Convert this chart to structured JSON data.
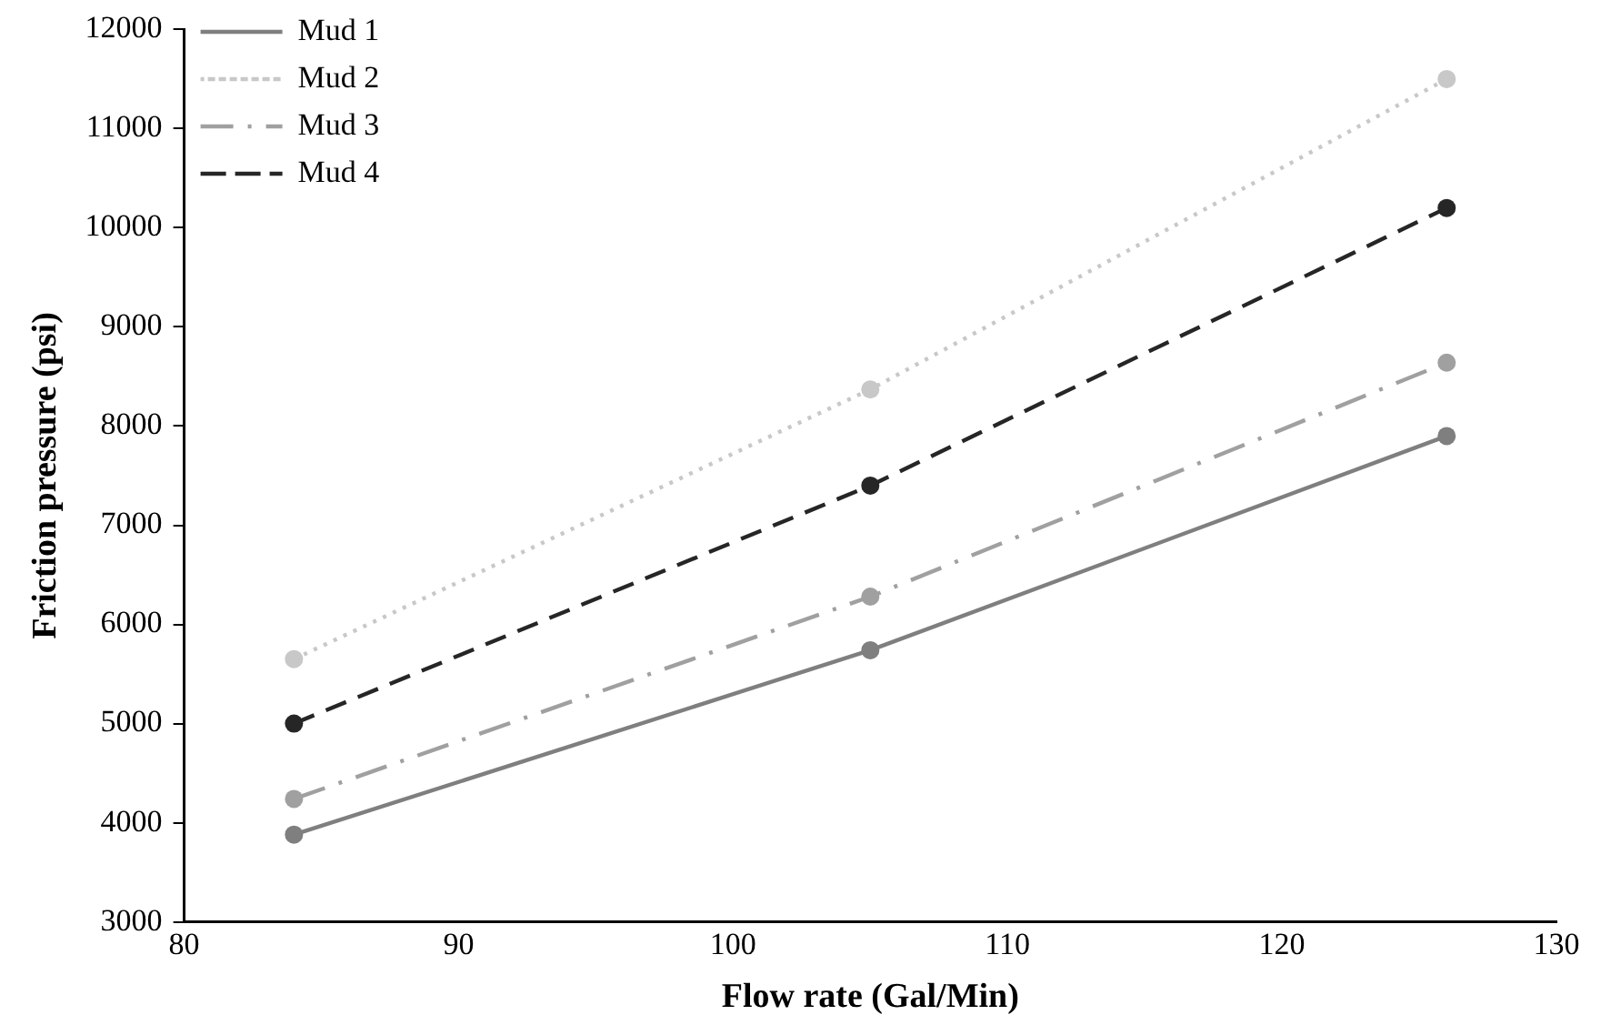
{
  "chart_data": {
    "type": "line",
    "xlabel": "Flow rate (Gal/Min)",
    "ylabel": "Friction pressure (psi)",
    "x": [
      84,
      105,
      126
    ],
    "series": [
      {
        "name": "Mud 1",
        "color": "#7f7f7f",
        "values": [
          3880,
          5740,
          7900
        ],
        "line_style": "solid"
      },
      {
        "name": "Mud 2",
        "color": "#c8c8c8",
        "values": [
          5650,
          8370,
          11500
        ],
        "line_style": "dotted"
      },
      {
        "name": "Mud 3",
        "color": "#a0a0a0",
        "values": [
          4240,
          6280,
          8640
        ],
        "line_style": "dashdot"
      },
      {
        "name": "Mud 4",
        "color": "#262626",
        "values": [
          5000,
          7400,
          10200
        ],
        "line_style": "dashed"
      }
    ],
    "xlim": [
      80,
      130
    ],
    "xticks": [
      80,
      90,
      100,
      110,
      120,
      130
    ],
    "ylim": [
      3000,
      12000
    ],
    "yticks": [
      3000,
      4000,
      5000,
      6000,
      7000,
      8000,
      9000,
      10000,
      11000,
      12000
    ],
    "grid": false,
    "legend": "top left",
    "marker": "circle"
  }
}
